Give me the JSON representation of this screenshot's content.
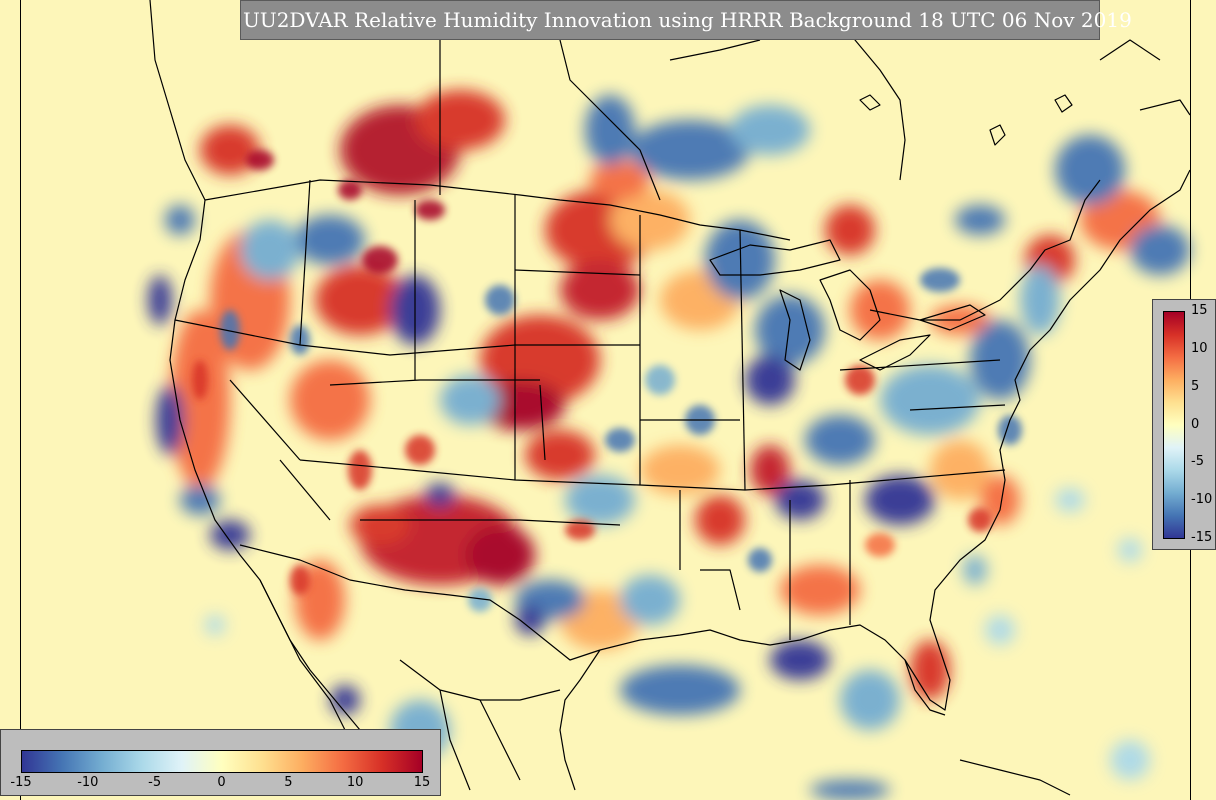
{
  "title": "UU2DVAR Relative Humidity Innovation using HRRR Background 18 UTC 06 Nov 2019",
  "colorbar": {
    "min": -15,
    "max": 15,
    "vertical_ticks": [
      "15",
      "10",
      "5",
      "0",
      "-5",
      "-10",
      "-15"
    ],
    "horizontal_ticks": [
      "-15",
      "-10",
      "-5",
      "0",
      "5",
      "10",
      "15"
    ],
    "colors": [
      "#313695",
      "#4575b4",
      "#74add1",
      "#abd9e9",
      "#e0f3f8",
      "#ffffbf",
      "#fee090",
      "#fdae61",
      "#f46d43",
      "#d73027",
      "#a50026"
    ]
  },
  "map": {
    "background_color": "#fdf6b9",
    "boundary_color": "#000000",
    "region": "Continental United States with southern Canada and northern Mexico"
  }
}
